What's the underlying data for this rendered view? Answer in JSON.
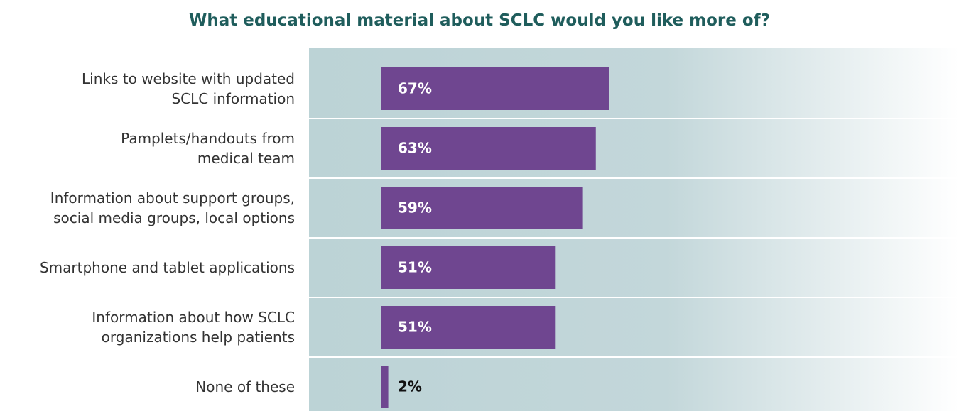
{
  "chart_data": {
    "type": "bar",
    "orientation": "horizontal",
    "title": "What educational material about SCLC would you like more of?",
    "categories": [
      "Links to website with updated\nSCLC information",
      "Pamplets/handouts from\nmedical team",
      "Information about support groups,\nsocial media groups, local options",
      "Smartphone and tablet applications",
      "Information about how SCLC\norganizations help patients",
      "None of these"
    ],
    "values": [
      67,
      63,
      59,
      51,
      51,
      2
    ],
    "value_labels": [
      "67%",
      "63%",
      "59%",
      "51%",
      "51%",
      "2%"
    ],
    "color": "#6f4690"
  }
}
